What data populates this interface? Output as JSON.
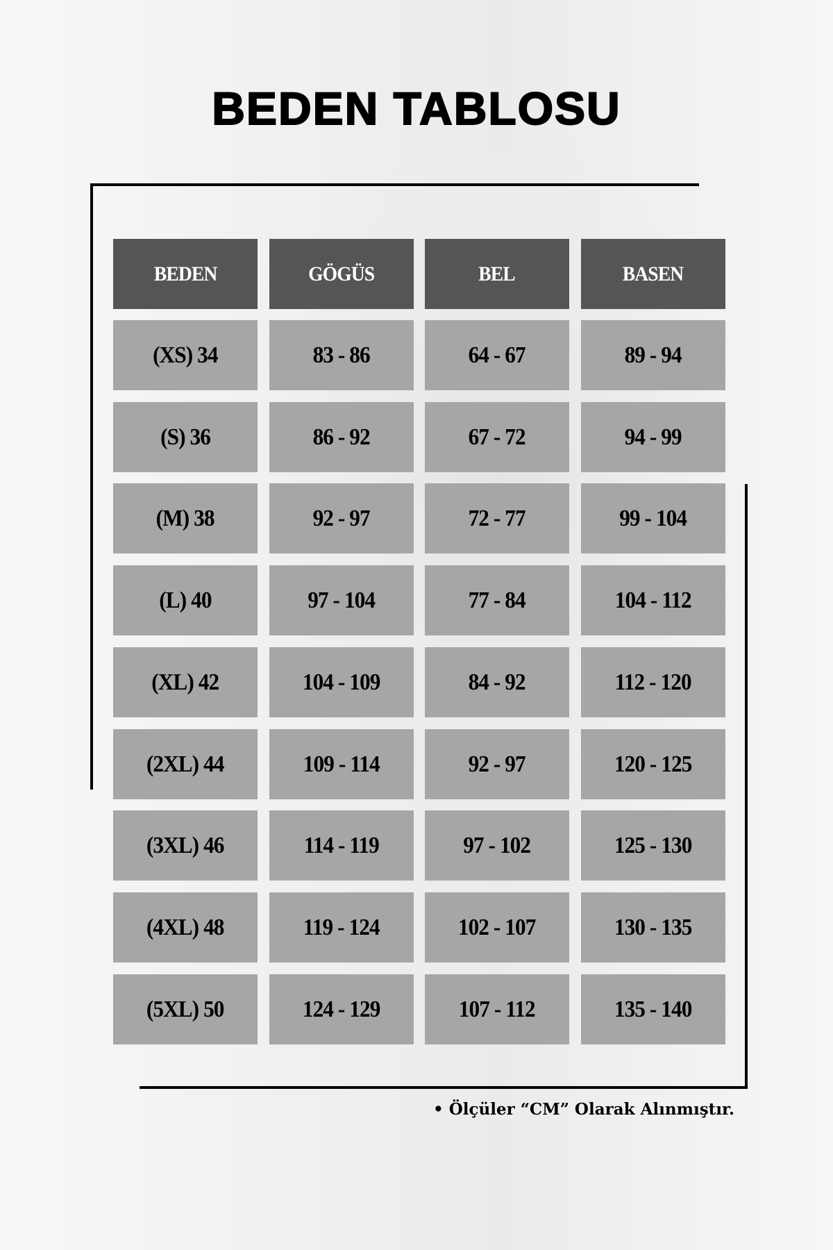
{
  "title": "BEDEN TABLOSU",
  "colors": {
    "header_bg": "#555555",
    "cell_bg": "#a6a6a6",
    "header_text": "#ffffff",
    "cell_text": "#000000"
  },
  "table": {
    "headers": [
      "BEDEN",
      "GÖGÜS",
      "BEL",
      "BASEN"
    ],
    "rows": [
      [
        "(XS) 34",
        "83 - 86",
        "64 - 67",
        "89 - 94"
      ],
      [
        "(S) 36",
        "86 - 92",
        "67 - 72",
        "94 - 99"
      ],
      [
        "(M) 38",
        "92 - 97",
        "72 - 77",
        "99 - 104"
      ],
      [
        "(L) 40",
        "97 - 104",
        "77 - 84",
        "104 - 112"
      ],
      [
        "(XL) 42",
        "104 - 109",
        "84 - 92",
        "112 - 120"
      ],
      [
        "(2XL) 44",
        "109 - 114",
        "92 - 97",
        "120 - 125"
      ],
      [
        "(3XL) 46",
        "114 - 119",
        "97 - 102",
        "125 - 130"
      ],
      [
        "(4XL) 48",
        "119 - 124",
        "102 - 107",
        "130 - 135"
      ],
      [
        "(5XL) 50",
        "124 - 129",
        "107 - 112",
        "135 - 140"
      ]
    ]
  },
  "note": "• Ölçüler “CM” Olarak Alınmıştır."
}
